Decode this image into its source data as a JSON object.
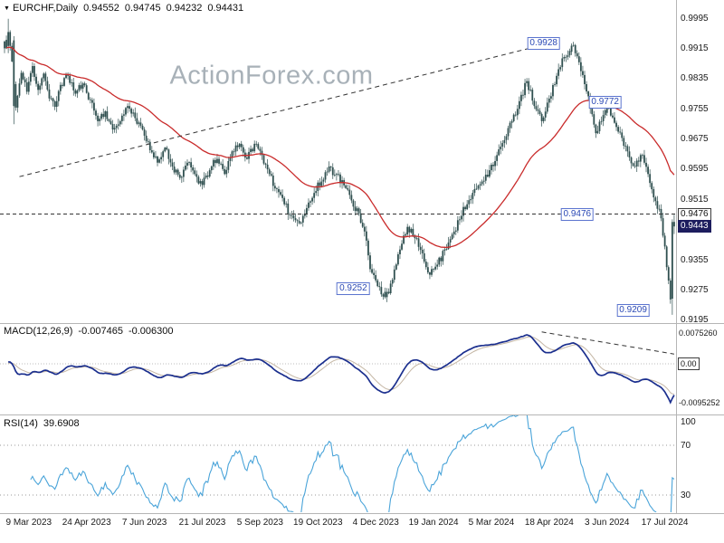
{
  "header": {
    "symbol": "EURCHF,Daily",
    "open": "0.94552",
    "high": "0.94745",
    "low": "0.94232",
    "close": "0.94431"
  },
  "watermark": "ActionForex.com",
  "panels": {
    "macd": {
      "title": "MACD(12,26,9)",
      "value_macd": "-0.007465",
      "value_signal": "-0.006300"
    },
    "rsi": {
      "title": "RSI(14)",
      "value": "39.6908"
    }
  },
  "colors": {
    "candle": "#2f4f4f",
    "ma_line": "#c92b2b",
    "macd_line": "#1b2f8e",
    "macd_signal": "#c4b6a4",
    "rsi_line": "#4aa4d9",
    "annotation_box": "#3a57c0",
    "axis_box_border": "#3c3c3c",
    "current_price_bg": "#1d1d5e",
    "watermark": "#a8b1b8",
    "separator": "#b5b5b5",
    "dashed_line": "#333333"
  },
  "chart_data": {
    "type": "candlestick",
    "symbol": "EURCHF",
    "timeframe": "Daily",
    "title": "EURCHF Daily with MACD(12,26,9) and RSI(14)",
    "current_ohlc": {
      "open": 0.94552,
      "high": 0.94745,
      "low": 0.94232,
      "close": 0.94431
    },
    "num_candles": 360,
    "seed": 11,
    "x_axis": {
      "labels": [
        "9 Mar 2023",
        "24 Apr 2023",
        "7 Jun 2023",
        "21 Jul 2023",
        "5 Sep 2023",
        "19 Oct 2023",
        "4 Dec 2023",
        "19 Jan 2024",
        "5 Mar 2024",
        "18 Apr 2024",
        "3 Jun 2024",
        "17 Jul 2024"
      ],
      "tick_indices": [
        13,
        44,
        75,
        106,
        137,
        168,
        199,
        230,
        261,
        292,
        323,
        354
      ]
    },
    "y_axis": {
      "tick_labels": [
        "0.9995",
        "0.9915",
        "0.9835",
        "0.9755",
        "0.9675",
        "0.9595",
        "0.9515",
        "0.9355",
        "0.9275",
        "0.9195"
      ],
      "visible_range": {
        "min": 0.915,
        "max": 1.002
      },
      "boxes": {
        "level": {
          "text": "0.9476",
          "value": 0.9476
        },
        "current": {
          "text": "0.9443",
          "value": 0.94431
        }
      }
    },
    "indicators": {
      "ma": {
        "type": "ema",
        "period": 50
      },
      "macd": {
        "fast": 12,
        "slow": 26,
        "signal": 9,
        "current_macd": -0.007465,
        "current_signal": -0.0063,
        "axis_labels": [
          {
            "text": "0.0075260",
            "value": 0.007526,
            "boxed": false
          },
          {
            "text": "0.00",
            "value": 0,
            "boxed": true
          },
          {
            "text": "-0.0095252",
            "value": -0.0095252,
            "boxed": false
          }
        ]
      },
      "rsi": {
        "period": 14,
        "current": 39.6908,
        "axis_levels": [
          {
            "text": "100",
            "value": 100
          },
          {
            "text": "70",
            "value": 70
          },
          {
            "text": "30",
            "value": 30
          }
        ],
        "dotted_levels": [
          70,
          30
        ]
      }
    },
    "annotations": {
      "price_labels": [
        {
          "text": "0.9928",
          "idx": 289,
          "value": 0.9928
        },
        {
          "text": "0.9772",
          "idx": 322,
          "value": 0.9772
        },
        {
          "text": "0.9476",
          "idx": 307,
          "value": 0.9476
        },
        {
          "text": "0.9252",
          "idx": 187,
          "value": 0.9278
        },
        {
          "text": "0.9209",
          "idx": 337,
          "value": 0.9222
        }
      ],
      "hline": 0.9476,
      "trendline_main": [
        [
          8,
          0.9575
        ],
        [
          295,
          0.9932
        ]
      ],
      "trendline_macd": [
        [
          288,
          0.0078
        ],
        [
          359,
          0.0024
        ]
      ]
    },
    "waypoints": [
      [
        0,
        0.9915
      ],
      [
        2,
        0.9958
      ],
      [
        4,
        0.988
      ],
      [
        6,
        0.9758
      ],
      [
        9,
        0.985
      ],
      [
        12,
        0.98
      ],
      [
        15,
        0.9868
      ],
      [
        18,
        0.9805
      ],
      [
        21,
        0.9848
      ],
      [
        24,
        0.9782
      ],
      [
        27,
        0.976
      ],
      [
        30,
        0.9818
      ],
      [
        34,
        0.9842
      ],
      [
        38,
        0.9795
      ],
      [
        42,
        0.9822
      ],
      [
        46,
        0.9778
      ],
      [
        50,
        0.9722
      ],
      [
        54,
        0.9748
      ],
      [
        58,
        0.97
      ],
      [
        62,
        0.9722
      ],
      [
        66,
        0.9762
      ],
      [
        70,
        0.973
      ],
      [
        74,
        0.97
      ],
      [
        78,
        0.9645
      ],
      [
        82,
        0.9612
      ],
      [
        86,
        0.9652
      ],
      [
        90,
        0.9602
      ],
      [
        94,
        0.9572
      ],
      [
        98,
        0.9612
      ],
      [
        102,
        0.9582
      ],
      [
        106,
        0.9553
      ],
      [
        110,
        0.9592
      ],
      [
        114,
        0.9622
      ],
      [
        118,
        0.9582
      ],
      [
        122,
        0.9642
      ],
      [
        126,
        0.9662
      ],
      [
        130,
        0.9622
      ],
      [
        134,
        0.9662
      ],
      [
        138,
        0.9632
      ],
      [
        142,
        0.9582
      ],
      [
        146,
        0.9542
      ],
      [
        150,
        0.9502
      ],
      [
        154,
        0.9472
      ],
      [
        158,
        0.9452
      ],
      [
        162,
        0.9492
      ],
      [
        166,
        0.9532
      ],
      [
        170,
        0.9562
      ],
      [
        174,
        0.9602
      ],
      [
        178,
        0.9582
      ],
      [
        182,
        0.9552
      ],
      [
        186,
        0.9512
      ],
      [
        190,
        0.9478
      ],
      [
        193,
        0.943
      ],
      [
        196,
        0.933
      ],
      [
        200,
        0.9285
      ],
      [
        204,
        0.9256
      ],
      [
        208,
        0.9302
      ],
      [
        212,
        0.9382
      ],
      [
        216,
        0.9442
      ],
      [
        220,
        0.9412
      ],
      [
        224,
        0.9372
      ],
      [
        228,
        0.9315
      ],
      [
        232,
        0.9342
      ],
      [
        236,
        0.9382
      ],
      [
        240,
        0.9422
      ],
      [
        244,
        0.9462
      ],
      [
        248,
        0.9502
      ],
      [
        252,
        0.9542
      ],
      [
        256,
        0.9562
      ],
      [
        260,
        0.9592
      ],
      [
        264,
        0.9632
      ],
      [
        268,
        0.9672
      ],
      [
        272,
        0.9722
      ],
      [
        276,
        0.9775
      ],
      [
        280,
        0.9828
      ],
      [
        284,
        0.9762
      ],
      [
        288,
        0.9722
      ],
      [
        292,
        0.9782
      ],
      [
        296,
        0.9842
      ],
      [
        300,
        0.9892
      ],
      [
        304,
        0.9922
      ],
      [
        306,
        0.9902
      ],
      [
        308,
        0.9878
      ],
      [
        311,
        0.982
      ],
      [
        314,
        0.9755
      ],
      [
        317,
        0.969
      ],
      [
        320,
        0.9722
      ],
      [
        323,
        0.9768
      ],
      [
        326,
        0.9732
      ],
      [
        330,
        0.9692
      ],
      [
        334,
        0.9642
      ],
      [
        338,
        0.9602
      ],
      [
        342,
        0.9632
      ],
      [
        345,
        0.9582
      ],
      [
        348,
        0.952
      ],
      [
        350,
        0.949
      ],
      [
        352,
        0.9465
      ],
      [
        354,
        0.939
      ],
      [
        356,
        0.93
      ],
      [
        357,
        0.925
      ],
      [
        358,
        0.9455
      ],
      [
        359,
        0.94431
      ]
    ],
    "overrides": {
      "2": {
        "o": 0.9921,
        "h": 0.9993,
        "l": 0.9902,
        "c": 0.9958
      },
      "5": {
        "o": 0.9936,
        "h": 0.9947,
        "l": 0.9714,
        "c": 0.9762
      },
      "204": {
        "o": 0.927,
        "h": 0.9281,
        "l": 0.9252,
        "c": 0.9256
      },
      "304": {
        "o": 0.9906,
        "h": 0.9928,
        "l": 0.9897,
        "c": 0.9922
      },
      "323": {
        "o": 0.9744,
        "h": 0.9772,
        "l": 0.9736,
        "c": 0.9768
      },
      "358": {
        "o": 0.9252,
        "h": 0.9462,
        "l": 0.9209,
        "c": 0.9455
      },
      "359": {
        "o": 0.94552,
        "h": 0.94745,
        "l": 0.94232,
        "c": 0.94431
      }
    }
  }
}
